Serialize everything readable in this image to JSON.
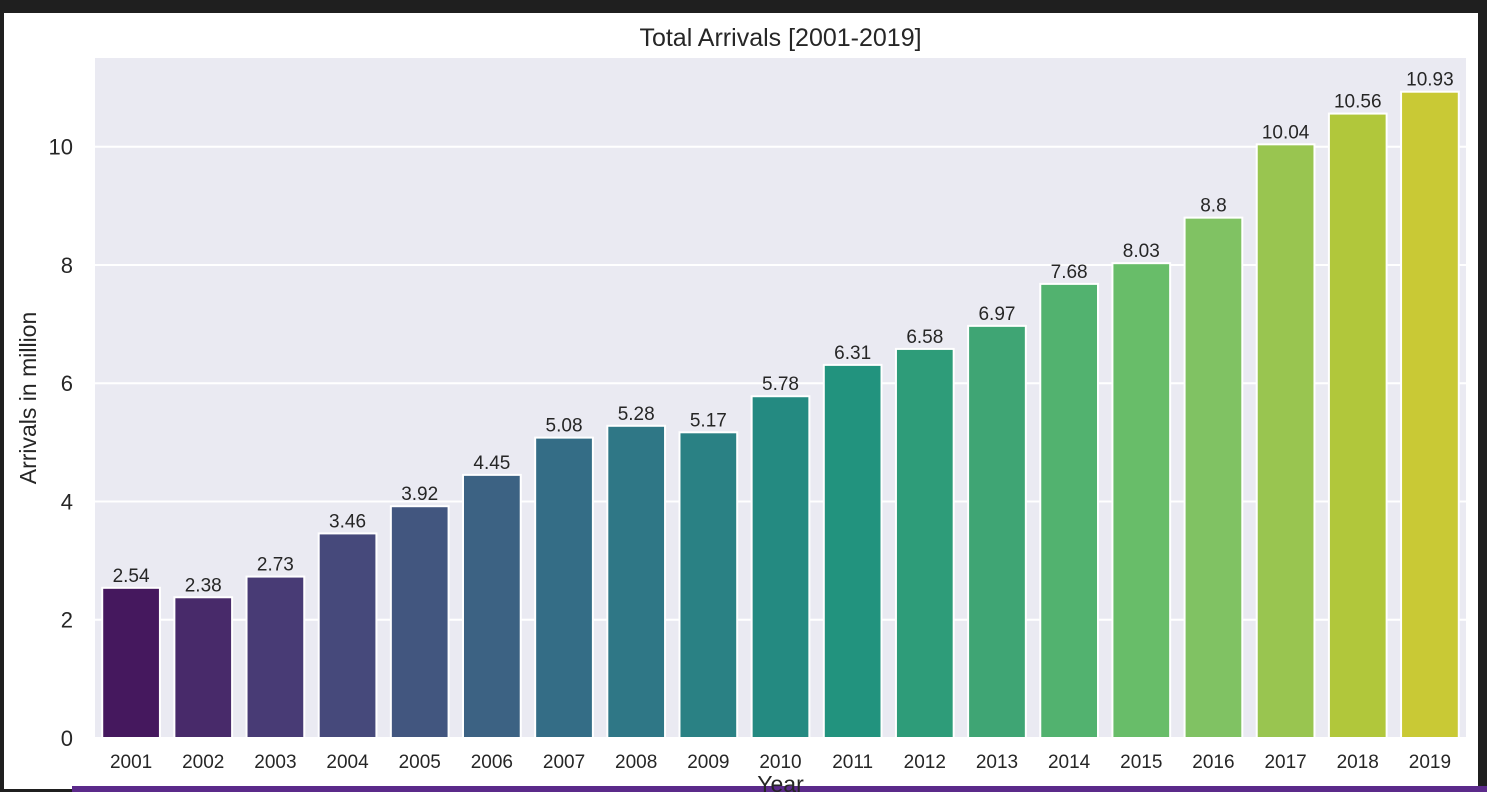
{
  "chart_data": {
    "type": "bar",
    "title": "Total Arrivals [2001-2019]",
    "xlabel": "Year",
    "ylabel": "Arrivals in million",
    "categories": [
      "2001",
      "2002",
      "2003",
      "2004",
      "2005",
      "2006",
      "2007",
      "2008",
      "2009",
      "2010",
      "2011",
      "2012",
      "2013",
      "2014",
      "2015",
      "2016",
      "2017",
      "2018",
      "2019"
    ],
    "values": [
      2.54,
      2.38,
      2.73,
      3.46,
      3.92,
      4.45,
      5.08,
      5.28,
      5.17,
      5.78,
      6.31,
      6.58,
      6.97,
      7.68,
      8.03,
      8.8,
      10.04,
      10.56,
      10.93
    ],
    "data_labels": [
      "2.54",
      "2.38",
      "2.73",
      "3.46",
      "3.92",
      "4.45",
      "5.08",
      "5.28",
      "5.17",
      "5.78",
      "6.31",
      "6.58",
      "6.97",
      "7.68",
      "8.03",
      "8.8",
      "10.04",
      "10.56",
      "10.93"
    ],
    "yticks": [
      0,
      2,
      4,
      6,
      8,
      10
    ],
    "ylim": [
      0,
      11.5
    ],
    "grid": true,
    "palette": "viridis",
    "colors": [
      "#45185e",
      "#482a6a",
      "#483b75",
      "#46497b",
      "#42567f",
      "#3c6283",
      "#346d86",
      "#2f7786",
      "#2a8184",
      "#248a81",
      "#22937e",
      "#2e9c79",
      "#3fa574",
      "#52b26f",
      "#68bd69",
      "#80c263",
      "#99c550",
      "#b1c73b",
      "#c9c935"
    ],
    "plot_background": "#eaeaf2"
  }
}
